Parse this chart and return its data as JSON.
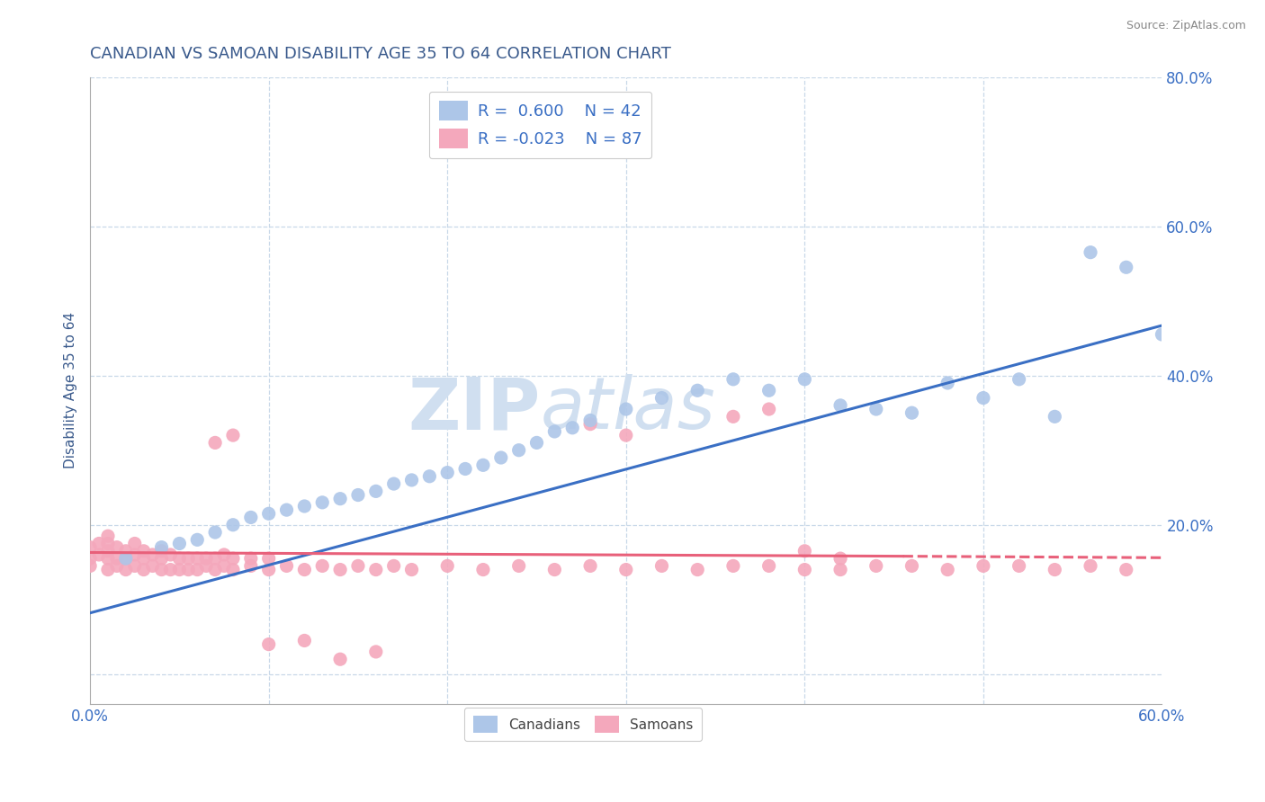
{
  "title": "CANADIAN VS SAMOAN DISABILITY AGE 35 TO 64 CORRELATION CHART",
  "source_text": "Source: ZipAtlas.com",
  "ylabel_label": "Disability Age 35 to 64",
  "xlim": [
    0.0,
    0.6
  ],
  "ylim": [
    -0.04,
    0.8
  ],
  "plot_ylim": [
    0.0,
    0.8
  ],
  "xticks": [
    0.0,
    0.1,
    0.2,
    0.3,
    0.4,
    0.5,
    0.6
  ],
  "yticks": [
    0.0,
    0.2,
    0.4,
    0.6,
    0.8
  ],
  "xtick_labels": [
    "0.0%",
    "",
    "",
    "",
    "",
    "",
    "60.0%"
  ],
  "ytick_labels": [
    "",
    "20.0%",
    "40.0%",
    "60.0%",
    "80.0%"
  ],
  "canadian_R": 0.6,
  "canadian_N": 42,
  "samoan_R": -0.023,
  "samoan_N": 87,
  "canadian_color": "#adc6e8",
  "samoan_color": "#f4a8bc",
  "canadian_line_color": "#3a6fc4",
  "samoan_line_color": "#e8607a",
  "title_color": "#3a5a8c",
  "axis_label_color": "#3a5a8c",
  "tick_color": "#3a6fc4",
  "source_color": "#888888",
  "watermark_color": "#d0dff0",
  "legend_R_color": "#3a6fc4",
  "grid_color": "#c8d8e8",
  "canadian_x": [
    0.02,
    0.04,
    0.05,
    0.06,
    0.07,
    0.08,
    0.09,
    0.1,
    0.11,
    0.12,
    0.13,
    0.14,
    0.15,
    0.16,
    0.17,
    0.18,
    0.19,
    0.2,
    0.21,
    0.22,
    0.23,
    0.24,
    0.25,
    0.26,
    0.27,
    0.28,
    0.3,
    0.32,
    0.34,
    0.36,
    0.38,
    0.4,
    0.42,
    0.44,
    0.46,
    0.48,
    0.5,
    0.52,
    0.54,
    0.56,
    0.58,
    0.6
  ],
  "canadian_y": [
    0.155,
    0.17,
    0.175,
    0.18,
    0.19,
    0.2,
    0.21,
    0.215,
    0.22,
    0.225,
    0.23,
    0.235,
    0.24,
    0.245,
    0.255,
    0.26,
    0.265,
    0.27,
    0.275,
    0.28,
    0.29,
    0.3,
    0.31,
    0.325,
    0.33,
    0.34,
    0.355,
    0.37,
    0.38,
    0.395,
    0.38,
    0.395,
    0.36,
    0.355,
    0.35,
    0.39,
    0.37,
    0.395,
    0.345,
    0.565,
    0.545,
    0.455
  ],
  "samoan_x": [
    0.0,
    0.0,
    0.0,
    0.005,
    0.005,
    0.01,
    0.01,
    0.01,
    0.01,
    0.01,
    0.015,
    0.015,
    0.015,
    0.02,
    0.02,
    0.02,
    0.025,
    0.025,
    0.025,
    0.03,
    0.03,
    0.03,
    0.035,
    0.035,
    0.04,
    0.04,
    0.04,
    0.045,
    0.045,
    0.05,
    0.05,
    0.055,
    0.055,
    0.06,
    0.06,
    0.065,
    0.065,
    0.07,
    0.07,
    0.075,
    0.075,
    0.08,
    0.08,
    0.09,
    0.09,
    0.1,
    0.1,
    0.11,
    0.12,
    0.13,
    0.14,
    0.15,
    0.16,
    0.17,
    0.18,
    0.2,
    0.22,
    0.24,
    0.26,
    0.28,
    0.3,
    0.32,
    0.34,
    0.36,
    0.38,
    0.4,
    0.42,
    0.44,
    0.46,
    0.48,
    0.5,
    0.52,
    0.54,
    0.56,
    0.58,
    0.4,
    0.42,
    0.36,
    0.38,
    0.28,
    0.3,
    0.14,
    0.16,
    0.1,
    0.12,
    0.08,
    0.07
  ],
  "samoan_y": [
    0.155,
    0.17,
    0.145,
    0.16,
    0.175,
    0.14,
    0.155,
    0.165,
    0.175,
    0.185,
    0.145,
    0.155,
    0.17,
    0.14,
    0.155,
    0.165,
    0.145,
    0.16,
    0.175,
    0.14,
    0.155,
    0.165,
    0.145,
    0.16,
    0.14,
    0.155,
    0.165,
    0.14,
    0.16,
    0.14,
    0.155,
    0.14,
    0.155,
    0.14,
    0.155,
    0.145,
    0.155,
    0.14,
    0.155,
    0.145,
    0.16,
    0.14,
    0.155,
    0.145,
    0.155,
    0.14,
    0.155,
    0.145,
    0.14,
    0.145,
    0.14,
    0.145,
    0.14,
    0.145,
    0.14,
    0.145,
    0.14,
    0.145,
    0.14,
    0.145,
    0.14,
    0.145,
    0.14,
    0.145,
    0.145,
    0.14,
    0.14,
    0.145,
    0.145,
    0.14,
    0.145,
    0.145,
    0.14,
    0.145,
    0.14,
    0.165,
    0.155,
    0.345,
    0.355,
    0.335,
    0.32,
    0.02,
    0.03,
    0.04,
    0.045,
    0.32,
    0.31
  ],
  "samoan_line_x0": 0.0,
  "samoan_line_y0": 0.163,
  "samoan_line_x1": 0.455,
  "samoan_line_y1": 0.158,
  "samoan_line_dash_x0": 0.455,
  "samoan_line_dash_y0": 0.158,
  "samoan_line_dash_x1": 0.6,
  "samoan_line_dash_y1": 0.156,
  "canadian_line_x0": 0.0,
  "canadian_line_y0": 0.082,
  "canadian_line_x1": 0.6,
  "canadian_line_y1": 0.467
}
